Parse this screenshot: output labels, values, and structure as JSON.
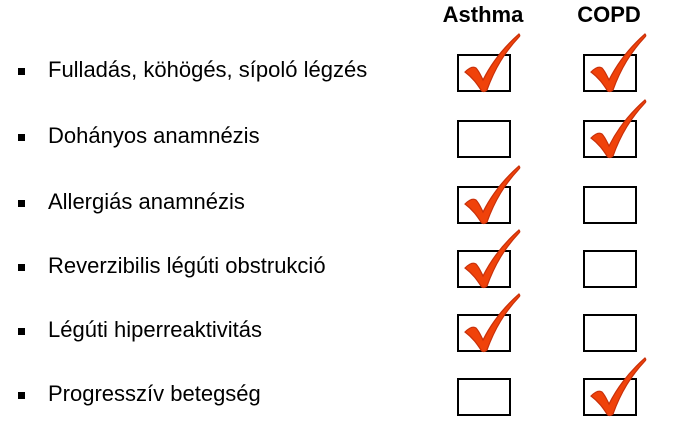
{
  "headers": {
    "asthma": "Asthma",
    "copd": "COPD"
  },
  "rows": [
    {
      "label": "Fulladás, köhögés, sípoló légzés",
      "asthma": true,
      "copd": true
    },
    {
      "label": "Dohányos anamnézis",
      "asthma": false,
      "copd": true
    },
    {
      "label": "Allergiás anamnézis",
      "asthma": true,
      "copd": false
    },
    {
      "label": "Reverzibilis légúti obstrukció",
      "asthma": true,
      "copd": false
    },
    {
      "label": "Légúti hiperreaktivitás",
      "asthma": true,
      "copd": false
    },
    {
      "label": "Progresszív betegség",
      "asthma": false,
      "copd": true
    }
  ],
  "colors": {
    "check": "#F0420A"
  }
}
